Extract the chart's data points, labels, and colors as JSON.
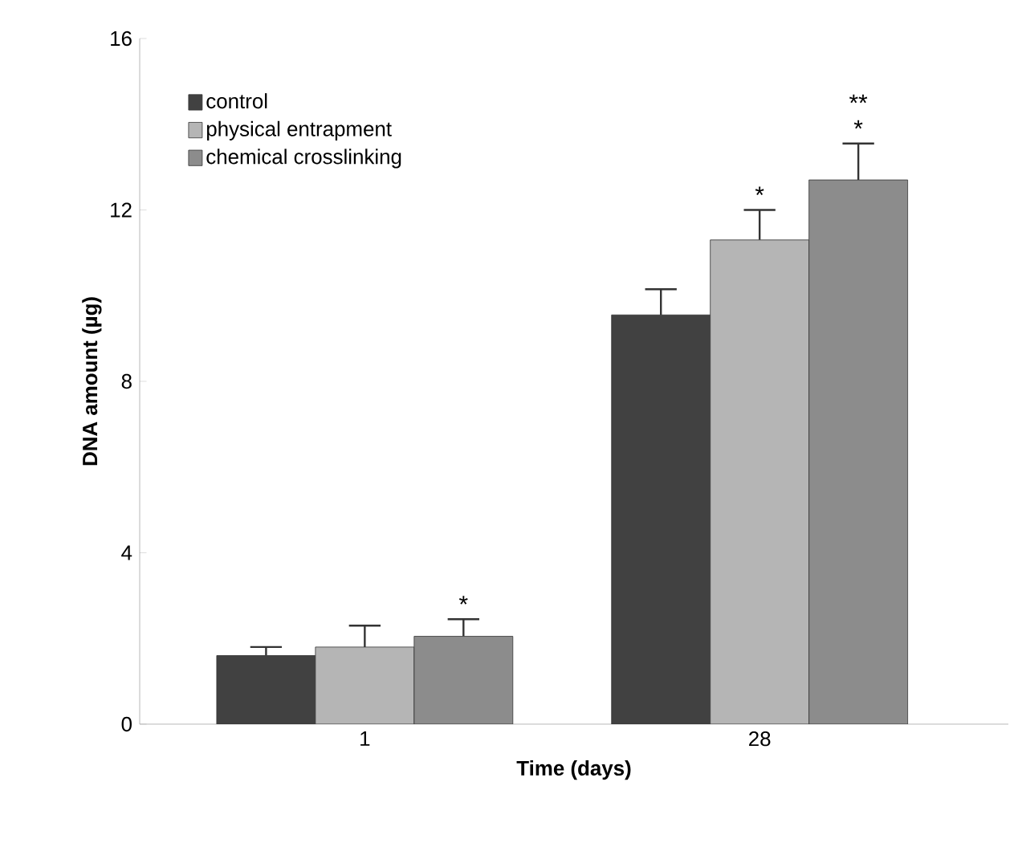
{
  "chart_data": {
    "type": "bar",
    "xlabel": "Time (days)",
    "ylabel": "DNA amount (µg)",
    "categories": [
      "1",
      "28"
    ],
    "series": [
      {
        "name": "control",
        "color": "#414141",
        "values": [
          1.6,
          9.55
        ],
        "errors": [
          0.2,
          0.6
        ]
      },
      {
        "name": "physical entrapment",
        "color": "#b5b5b5",
        "values": [
          1.8,
          11.3
        ],
        "errors": [
          0.5,
          0.7
        ]
      },
      {
        "name": "chemical crosslinking",
        "color": "#8c8c8c",
        "values": [
          2.05,
          12.7
        ],
        "errors": [
          0.4,
          0.85
        ]
      }
    ],
    "ylim": [
      0,
      16
    ],
    "yticks": [
      0,
      4,
      8,
      12,
      16
    ],
    "legend": "top left",
    "grid": false,
    "annotations": [
      "*",
      {
        "text": "*",
        "x": "28",
        "y": 11.3
      },
      "*",
      "**"
    ]
  }
}
